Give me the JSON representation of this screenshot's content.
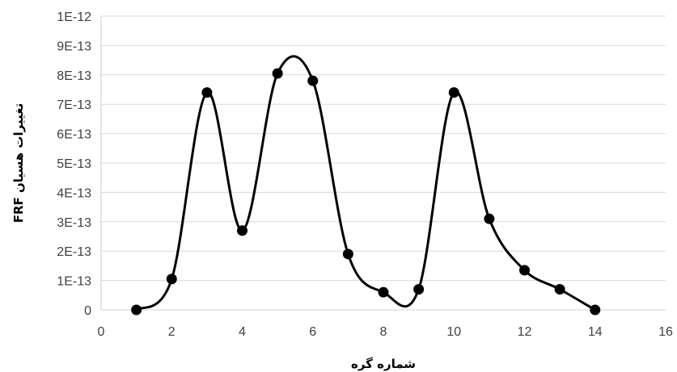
{
  "chart_data": {
    "type": "scatter",
    "xlabel": "شماره گره",
    "ylabel": "FRF تغییرات هسیان",
    "xlim": [
      0,
      16
    ],
    "ylim": [
      0,
      1e-12
    ],
    "x_ticks": [
      "0",
      "2",
      "4",
      "6",
      "8",
      "10",
      "12",
      "14",
      "16"
    ],
    "y_ticks": [
      "0",
      "1E-13",
      "2E-13",
      "3E-13",
      "4E-13",
      "5E-13",
      "6E-13",
      "7E-13",
      "8E-13",
      "9E-13",
      "1E-12"
    ],
    "grid": true,
    "smooth_line": true,
    "series": [
      {
        "x": [
          1,
          2,
          3,
          4,
          5,
          6,
          7,
          8,
          9,
          10,
          11,
          12,
          13,
          14
        ],
        "y": [
          0,
          1.05e-13,
          7.4e-13,
          2.7e-13,
          8.05e-13,
          7.8e-13,
          1.9e-13,
          6e-14,
          7e-14,
          7.4e-13,
          3.1e-13,
          1.35e-13,
          7e-14,
          0
        ],
        "color": "#000000"
      }
    ]
  }
}
